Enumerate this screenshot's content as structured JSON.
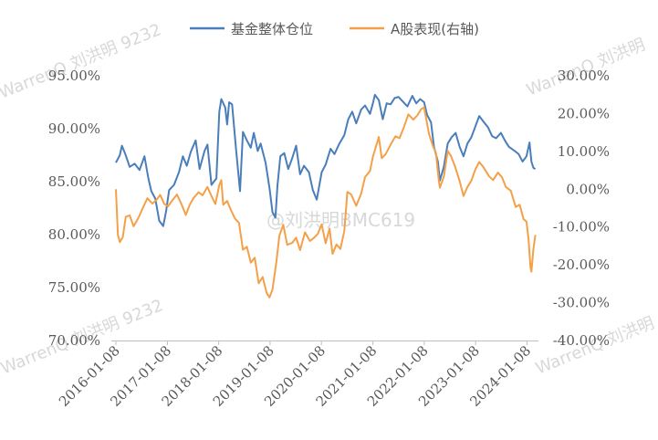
{
  "chart_data": {
    "type": "line",
    "title": "",
    "x_ticks": [
      "2016-01-08",
      "2017-01-08",
      "2018-01-08",
      "2019-01-08",
      "2020-01-08",
      "2021-01-08",
      "2022-01-08",
      "2023-01-08",
      "2024-01-08"
    ],
    "left_axis": {
      "min": 70,
      "max": 95,
      "step": 5,
      "tick_labels": [
        "95.00%",
        "90.00%",
        "85.00%",
        "80.00%",
        "75.00%",
        "70.00%"
      ]
    },
    "right_axis": {
      "min": -40,
      "max": 30,
      "step": 10,
      "tick_labels": [
        "30.00%",
        "20.00%",
        "10.00%",
        "0.00%",
        "-10.00%",
        "-20.00%",
        "-30.00%",
        "-40.00%"
      ]
    },
    "grid": false,
    "legend_position": "top-center",
    "series": [
      {
        "name": "基金整体仓位",
        "axis": "left",
        "color": "#4a7ebb",
        "points": [
          [
            "2016-01-08",
            86.8
          ],
          [
            "2016-02-05",
            87.5
          ],
          [
            "2016-02-20",
            88.4
          ],
          [
            "2016-03-15",
            87.6
          ],
          [
            "2016-04-15",
            86.4
          ],
          [
            "2016-05-20",
            86.7
          ],
          [
            "2016-06-24",
            86.1
          ],
          [
            "2016-07-29",
            87.4
          ],
          [
            "2016-08-26",
            85.3
          ],
          [
            "2016-09-16",
            84.1
          ],
          [
            "2016-10-14",
            83.4
          ],
          [
            "2016-11-11",
            81.3
          ],
          [
            "2016-12-09",
            80.8
          ],
          [
            "2016-12-30",
            82.2
          ],
          [
            "2017-01-20",
            84.2
          ],
          [
            "2017-02-24",
            84.7
          ],
          [
            "2017-03-31",
            85.9
          ],
          [
            "2017-04-28",
            87.4
          ],
          [
            "2017-05-26",
            86.5
          ],
          [
            "2017-06-23",
            87.8
          ],
          [
            "2017-07-28",
            88.9
          ],
          [
            "2017-08-25",
            86.2
          ],
          [
            "2017-09-29",
            87.9
          ],
          [
            "2017-10-20",
            88.5
          ],
          [
            "2017-11-17",
            84.7
          ],
          [
            "2017-12-22",
            85.3
          ],
          [
            "2018-01-12",
            91.6
          ],
          [
            "2018-01-26",
            92.8
          ],
          [
            "2018-02-23",
            92.0
          ],
          [
            "2018-03-09",
            90.4
          ],
          [
            "2018-03-23",
            92.5
          ],
          [
            "2018-04-13",
            92.3
          ],
          [
            "2018-05-11",
            88.1
          ],
          [
            "2018-06-08",
            84.1
          ],
          [
            "2018-06-29",
            89.7
          ],
          [
            "2018-07-27",
            88.9
          ],
          [
            "2018-08-24",
            88.2
          ],
          [
            "2018-09-14",
            89.6
          ],
          [
            "2018-10-12",
            87.9
          ],
          [
            "2018-11-02",
            88.6
          ],
          [
            "2018-12-07",
            86.8
          ],
          [
            "2019-01-04",
            84.4
          ],
          [
            "2019-01-25",
            82.1
          ],
          [
            "2019-02-15",
            81.6
          ],
          [
            "2019-03-01",
            84.6
          ],
          [
            "2019-03-22",
            87.4
          ],
          [
            "2019-04-19",
            87.7
          ],
          [
            "2019-05-17",
            86.2
          ],
          [
            "2019-06-14",
            87.2
          ],
          [
            "2019-07-12",
            88.4
          ],
          [
            "2019-08-09",
            85.7
          ],
          [
            "2019-09-06",
            86.5
          ],
          [
            "2019-10-11",
            85.9
          ],
          [
            "2019-11-08",
            84.2
          ],
          [
            "2019-12-06",
            83.3
          ],
          [
            "2020-01-10",
            85.9
          ],
          [
            "2020-02-07",
            86.6
          ],
          [
            "2020-03-13",
            88.1
          ],
          [
            "2020-04-10",
            87.6
          ],
          [
            "2020-05-15",
            88.6
          ],
          [
            "2020-06-19",
            89.4
          ],
          [
            "2020-07-17",
            90.9
          ],
          [
            "2020-08-14",
            91.6
          ],
          [
            "2020-09-11",
            90.5
          ],
          [
            "2020-10-16",
            91.8
          ],
          [
            "2020-11-13",
            92.2
          ],
          [
            "2020-12-18",
            91.4
          ],
          [
            "2021-01-08",
            92.4
          ],
          [
            "2021-01-22",
            93.2
          ],
          [
            "2021-02-19",
            92.7
          ],
          [
            "2021-03-19",
            90.9
          ],
          [
            "2021-04-16",
            92.4
          ],
          [
            "2021-05-14",
            92.3
          ],
          [
            "2021-06-11",
            92.9
          ],
          [
            "2021-07-09",
            93.0
          ],
          [
            "2021-08-06",
            92.6
          ],
          [
            "2021-09-10",
            92.1
          ],
          [
            "2021-10-15",
            93.1
          ],
          [
            "2021-11-12",
            92.4
          ],
          [
            "2021-12-10",
            92.8
          ],
          [
            "2022-01-07",
            92.5
          ],
          [
            "2022-01-28",
            91.3
          ],
          [
            "2022-02-25",
            90.6
          ],
          [
            "2022-03-18",
            88.3
          ],
          [
            "2022-04-15",
            86.9
          ],
          [
            "2022-04-29",
            85.1
          ],
          [
            "2022-05-27",
            86.4
          ],
          [
            "2022-06-24",
            88.6
          ],
          [
            "2022-07-22",
            89.2
          ],
          [
            "2022-08-19",
            89.6
          ],
          [
            "2022-09-16",
            88.3
          ],
          [
            "2022-10-14",
            87.4
          ],
          [
            "2022-11-11",
            88.6
          ],
          [
            "2022-12-09",
            89.2
          ],
          [
            "2023-01-06",
            90.2
          ],
          [
            "2023-02-03",
            91.2
          ],
          [
            "2023-03-03",
            90.7
          ],
          [
            "2023-04-07",
            90.1
          ],
          [
            "2023-05-05",
            89.3
          ],
          [
            "2023-06-02",
            89.1
          ],
          [
            "2023-07-07",
            89.6
          ],
          [
            "2023-08-04",
            88.9
          ],
          [
            "2023-09-01",
            88.3
          ],
          [
            "2023-10-13",
            87.9
          ],
          [
            "2023-11-10",
            87.6
          ],
          [
            "2023-12-08",
            86.9
          ],
          [
            "2024-01-05",
            87.4
          ],
          [
            "2024-01-26",
            88.7
          ],
          [
            "2024-02-09",
            86.9
          ],
          [
            "2024-02-23",
            86.3
          ],
          [
            "2024-03-08",
            86.2
          ]
        ]
      },
      {
        "name": "A股表现(右轴)",
        "axis": "right",
        "color": "#f4a048",
        "points": [
          [
            "2016-01-08",
            0.0
          ],
          [
            "2016-01-22",
            -12.1
          ],
          [
            "2016-02-05",
            -14.0
          ],
          [
            "2016-02-26",
            -12.6
          ],
          [
            "2016-03-18",
            -7.3
          ],
          [
            "2016-04-15",
            -6.9
          ],
          [
            "2016-05-13",
            -9.8
          ],
          [
            "2016-06-17",
            -7.5
          ],
          [
            "2016-07-22",
            -4.6
          ],
          [
            "2016-08-19",
            -2.4
          ],
          [
            "2016-09-23",
            -3.8
          ],
          [
            "2016-10-21",
            -2.9
          ],
          [
            "2016-11-18",
            -1.5
          ],
          [
            "2016-12-16",
            -3.9
          ],
          [
            "2017-01-13",
            -4.5
          ],
          [
            "2017-02-17",
            -2.7
          ],
          [
            "2017-03-17",
            -1.4
          ],
          [
            "2017-04-21",
            -4.2
          ],
          [
            "2017-05-19",
            -6.8
          ],
          [
            "2017-06-16",
            -4.1
          ],
          [
            "2017-07-14",
            -2.3
          ],
          [
            "2017-08-18",
            -0.8
          ],
          [
            "2017-09-15",
            -1.6
          ],
          [
            "2017-10-20",
            0.6
          ],
          [
            "2017-11-17",
            -1.8
          ],
          [
            "2017-12-15",
            -3.9
          ],
          [
            "2018-01-12",
            1.1
          ],
          [
            "2018-01-26",
            2.4
          ],
          [
            "2018-02-09",
            -4.1
          ],
          [
            "2018-03-09",
            -3.1
          ],
          [
            "2018-04-06",
            -5.6
          ],
          [
            "2018-05-04",
            -7.8
          ],
          [
            "2018-06-01",
            -8.9
          ],
          [
            "2018-06-29",
            -16.0
          ],
          [
            "2018-07-27",
            -15.2
          ],
          [
            "2018-08-24",
            -19.4
          ],
          [
            "2018-09-21",
            -18.1
          ],
          [
            "2018-10-19",
            -24.9
          ],
          [
            "2018-11-16",
            -23.2
          ],
          [
            "2018-12-14",
            -27.4
          ],
          [
            "2019-01-04",
            -28.6
          ],
          [
            "2019-01-25",
            -26.5
          ],
          [
            "2019-02-22",
            -19.1
          ],
          [
            "2019-03-15",
            -12.3
          ],
          [
            "2019-04-12",
            -9.4
          ],
          [
            "2019-05-10",
            -14.7
          ],
          [
            "2019-06-14",
            -14.2
          ],
          [
            "2019-07-12",
            -12.8
          ],
          [
            "2019-08-09",
            -16.1
          ],
          [
            "2019-09-13",
            -11.4
          ],
          [
            "2019-10-18",
            -13.7
          ],
          [
            "2019-11-15",
            -12.9
          ],
          [
            "2019-12-13",
            -11.8
          ],
          [
            "2020-01-10",
            -9.3
          ],
          [
            "2020-02-07",
            -14.3
          ],
          [
            "2020-03-06",
            -10.4
          ],
          [
            "2020-03-27",
            -17.1
          ],
          [
            "2020-04-24",
            -14.6
          ],
          [
            "2020-05-22",
            -15.8
          ],
          [
            "2020-06-19",
            -11.0
          ],
          [
            "2020-07-10",
            -0.7
          ],
          [
            "2020-08-07",
            -1.4
          ],
          [
            "2020-09-11",
            -4.4
          ],
          [
            "2020-10-16",
            -1.2
          ],
          [
            "2020-11-13",
            3.2
          ],
          [
            "2020-12-18",
            4.8
          ],
          [
            "2021-01-08",
            8.6
          ],
          [
            "2021-02-19",
            13.8
          ],
          [
            "2021-03-12",
            8.2
          ],
          [
            "2021-04-09",
            9.3
          ],
          [
            "2021-05-14",
            11.8
          ],
          [
            "2021-06-18",
            14.0
          ],
          [
            "2021-07-16",
            13.5
          ],
          [
            "2021-08-13",
            16.1
          ],
          [
            "2021-09-17",
            19.8
          ],
          [
            "2021-10-22",
            18.4
          ],
          [
            "2021-11-19",
            19.5
          ],
          [
            "2021-12-17",
            21.2
          ],
          [
            "2022-01-07",
            21.6
          ],
          [
            "2022-02-11",
            14.6
          ],
          [
            "2022-03-11",
            11.4
          ],
          [
            "2022-04-01",
            9.6
          ],
          [
            "2022-04-22",
            2.1
          ],
          [
            "2022-04-29",
            0.4
          ],
          [
            "2022-05-27",
            3.3
          ],
          [
            "2022-06-24",
            10.1
          ],
          [
            "2022-07-15",
            8.9
          ],
          [
            "2022-08-12",
            6.3
          ],
          [
            "2022-09-16",
            2.2
          ],
          [
            "2022-10-14",
            -1.8
          ],
          [
            "2022-11-11",
            0.6
          ],
          [
            "2022-12-09",
            2.3
          ],
          [
            "2023-01-06",
            5.2
          ],
          [
            "2023-02-03",
            7.2
          ],
          [
            "2023-03-03",
            5.9
          ],
          [
            "2023-04-14",
            3.4
          ],
          [
            "2023-05-12",
            2.4
          ],
          [
            "2023-06-16",
            4.4
          ],
          [
            "2023-07-14",
            3.2
          ],
          [
            "2023-08-11",
            0.6
          ],
          [
            "2023-09-15",
            -0.4
          ],
          [
            "2023-10-20",
            -4.7
          ],
          [
            "2023-11-17",
            -4.1
          ],
          [
            "2023-12-15",
            -7.9
          ],
          [
            "2024-01-05",
            -8.6
          ],
          [
            "2024-01-19",
            -13.1
          ],
          [
            "2024-02-02",
            -20.7
          ],
          [
            "2024-02-09",
            -21.8
          ],
          [
            "2024-02-23",
            -15.8
          ],
          [
            "2024-03-08",
            -12.1
          ]
        ]
      }
    ],
    "watermarks": [
      "WarrenQ 刘洪明 9232",
      "WarrenQ 刘洪明",
      "@刘洪明BMC619"
    ]
  }
}
